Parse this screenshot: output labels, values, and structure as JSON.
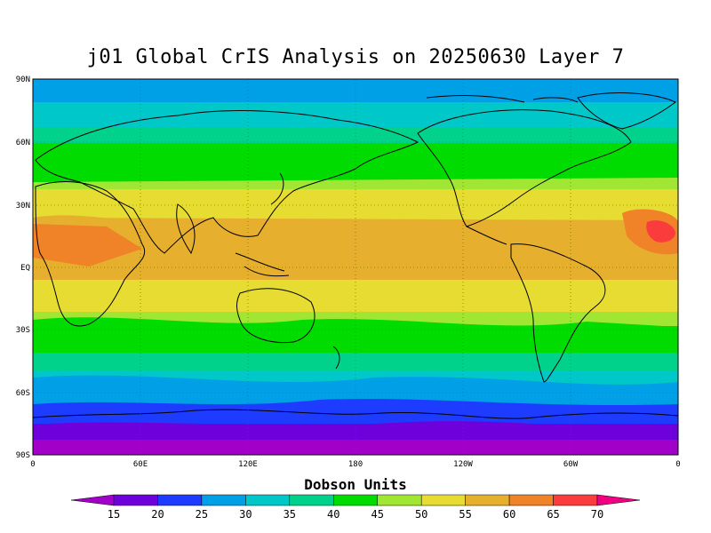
{
  "title": "j01 Global CrIS Analysis on 20250630 Layer 7",
  "y_ticks": [
    "90N",
    "60N",
    "30N",
    "EQ",
    "30S",
    "60S",
    "90S"
  ],
  "x_ticks": [
    "0",
    "60E",
    "120E",
    "180",
    "120W",
    "60W",
    "0"
  ],
  "colorbar": {
    "title": "Dobson Units",
    "labels": [
      "15",
      "20",
      "25",
      "30",
      "35",
      "40",
      "45",
      "50",
      "55",
      "60",
      "65",
      "70"
    ],
    "colors": [
      "#a000c8",
      "#6e00dc",
      "#1e3cff",
      "#00a0e6",
      "#00c8c8",
      "#00d28c",
      "#00dc00",
      "#a0e632",
      "#e6dc32",
      "#e6af2d",
      "#f08228",
      "#fa3c3c",
      "#f00082"
    ]
  }
}
